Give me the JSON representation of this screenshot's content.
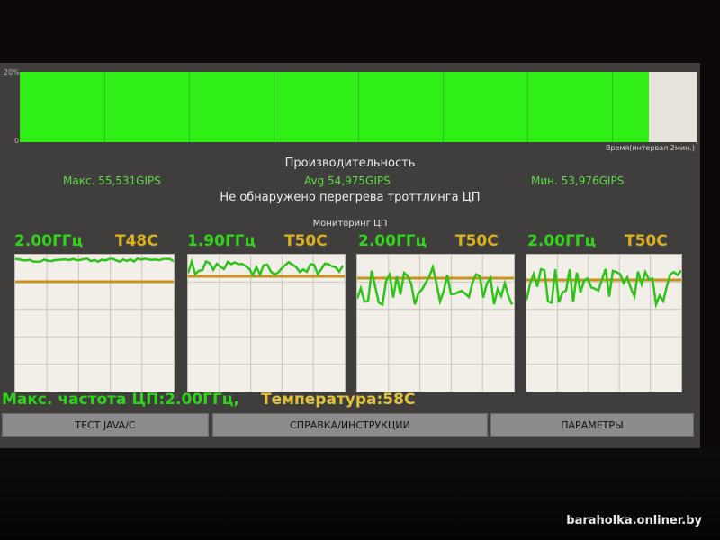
{
  "perf_chart": {
    "y_top": "20%",
    "y_bottom": "0",
    "x_label": "Время(интервал 2мин.)",
    "fill_fraction": 0.93
  },
  "performance": {
    "title": "Производительность",
    "max": "Макс. 55,531GIPS",
    "avg": "Avg 54,975GIPS",
    "min": "Мин. 53,976GIPS",
    "throttle_status": "Не обнаружено перегрева троттлинга ЦП"
  },
  "monitor": {
    "title": "Мониторинг ЦП",
    "cores": [
      {
        "freq": "2.00ГГц",
        "temp": "T48C"
      },
      {
        "freq": "1.90ГГц",
        "temp": "T50C"
      },
      {
        "freq": "2.00ГГц",
        "temp": "T50C"
      },
      {
        "freq": "2.00ГГц",
        "temp": "T50C"
      }
    ],
    "max_freq": "Макс. частота ЦП:2.00ГГц,",
    "temperature": "Температура:58С"
  },
  "buttons": {
    "test": "ТЕСТ JAVA/C",
    "help": "СПРАВКА/ИНСТРУКЦИИ",
    "params": "ПАРАМЕТРЫ"
  },
  "watermark": "baraholka.onliner.by",
  "colors": {
    "green": "#2fef16",
    "line_green": "#2dc41a",
    "temp_line": "#c8931c",
    "temp_text": "#d9b01e"
  }
}
